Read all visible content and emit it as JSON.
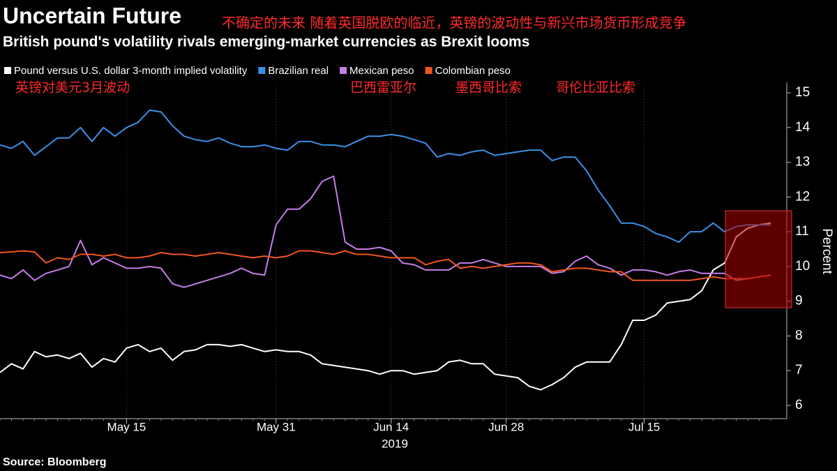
{
  "chart_data": {
    "type": "line",
    "title": "Uncertain Future",
    "subtitle": "British pound's volatility rivals emerging-market currencies as Brexit looms",
    "annotations": [
      "不确定的未来 随着英国脱欧的临近，英镑的波动性与新兴市场货币形成竞争",
      "英镑对美元3月波动",
      "巴西雷亚尔",
      "墨西哥比索",
      "哥伦比亚比索"
    ],
    "y_label": "Percent",
    "x_label": "2019",
    "source": "Source: Bloomberg",
    "categories": [
      null,
      null,
      null,
      null,
      null,
      null,
      null,
      null,
      null,
      null,
      null,
      "May 15",
      null,
      null,
      null,
      null,
      null,
      null,
      null,
      null,
      null,
      null,
      null,
      null,
      "May 31",
      null,
      null,
      null,
      null,
      null,
      null,
      null,
      null,
      null,
      "Jun 14",
      null,
      null,
      null,
      null,
      null,
      null,
      null,
      null,
      null,
      "Jun 28",
      null,
      null,
      null,
      null,
      null,
      null,
      null,
      null,
      null,
      null,
      null,
      "Jul 15",
      null,
      null,
      null,
      null,
      null,
      null,
      null,
      null,
      null,
      null,
      null
    ],
    "series": [
      {
        "name": "Pound versus U.S. dollar 3-month implied volatility",
        "color": "#ffffff",
        "values": [
          6.95,
          7.2,
          7.05,
          7.55,
          7.4,
          7.45,
          7.35,
          7.5,
          7.1,
          7.35,
          7.25,
          7.65,
          7.75,
          7.55,
          7.65,
          7.3,
          7.55,
          7.6,
          7.75,
          7.75,
          7.7,
          7.75,
          7.65,
          7.55,
          7.6,
          7.55,
          7.55,
          7.45,
          7.2,
          7.15,
          7.1,
          7.05,
          7.0,
          6.9,
          7.0,
          7.0,
          6.9,
          6.95,
          7.0,
          7.25,
          7.3,
          7.2,
          7.2,
          6.9,
          6.85,
          6.8,
          6.55,
          6.45,
          6.6,
          6.8,
          7.1,
          7.25,
          7.25,
          7.25,
          7.75,
          8.45,
          8.45,
          8.6,
          8.95,
          9.0,
          9.05,
          9.3,
          9.9,
          10.1,
          10.85,
          11.1,
          11.2,
          11.25
        ]
      },
      {
        "name": "Brazilian real",
        "color": "#3d8fe6",
        "values": [
          13.5,
          13.4,
          13.6,
          13.2,
          13.45,
          13.7,
          13.7,
          14.0,
          13.6,
          14.0,
          13.75,
          14.0,
          14.15,
          14.5,
          14.45,
          14.05,
          13.75,
          13.65,
          13.6,
          13.7,
          13.55,
          13.45,
          13.45,
          13.5,
          13.4,
          13.35,
          13.6,
          13.6,
          13.5,
          13.5,
          13.45,
          13.6,
          13.75,
          13.75,
          13.8,
          13.75,
          13.65,
          13.55,
          13.15,
          13.25,
          13.2,
          13.3,
          13.35,
          13.2,
          13.25,
          13.3,
          13.35,
          13.35,
          13.05,
          13.15,
          13.15,
          12.75,
          12.2,
          11.75,
          11.25,
          11.25,
          11.15,
          10.95,
          10.85,
          10.7,
          11.0,
          11.0,
          11.25,
          11.0,
          11.15,
          11.2,
          11.2,
          11.2
        ]
      },
      {
        "name": "Mexican peso",
        "color": "#c77dea",
        "values": [
          9.75,
          9.65,
          9.9,
          9.6,
          9.8,
          9.9,
          10.0,
          10.75,
          10.05,
          10.25,
          10.1,
          9.95,
          9.95,
          10.0,
          9.95,
          9.5,
          9.4,
          9.5,
          9.6,
          9.7,
          9.8,
          9.95,
          9.8,
          9.75,
          11.2,
          11.65,
          11.65,
          11.95,
          12.45,
          12.6,
          10.7,
          10.5,
          10.5,
          10.55,
          10.45,
          10.1,
          10.05,
          9.9,
          9.9,
          9.9,
          10.1,
          10.1,
          10.2,
          10.1,
          10.0,
          10.0,
          10.0,
          10.0,
          9.8,
          9.85,
          10.15,
          10.3,
          10.05,
          9.95,
          9.75,
          9.9,
          9.9,
          9.85,
          9.75,
          9.85,
          9.9,
          9.8,
          9.8,
          9.8,
          9.6,
          9.65,
          9.7,
          9.75
        ]
      },
      {
        "name": "Colombian peso",
        "color": "#f0561d",
        "values": [
          10.4,
          10.42,
          10.45,
          10.42,
          10.1,
          10.25,
          10.2,
          10.35,
          10.35,
          10.3,
          10.35,
          10.25,
          10.25,
          10.3,
          10.4,
          10.35,
          10.35,
          10.3,
          10.35,
          10.4,
          10.35,
          10.3,
          10.25,
          10.3,
          10.25,
          10.3,
          10.45,
          10.45,
          10.4,
          10.35,
          10.45,
          10.35,
          10.35,
          10.3,
          10.25,
          10.25,
          10.25,
          10.05,
          10.15,
          10.2,
          9.95,
          10.0,
          9.95,
          10.0,
          10.05,
          10.1,
          10.1,
          10.05,
          9.85,
          9.9,
          9.95,
          9.95,
          9.9,
          9.85,
          9.85,
          9.6,
          9.6,
          9.6,
          9.6,
          9.6,
          9.6,
          9.65,
          9.7,
          9.65,
          9.65,
          9.65,
          9.7,
          9.75
        ]
      }
    ],
    "ylim": [
      6,
      15
    ],
    "yticks": [
      6,
      7,
      8,
      9,
      10,
      11,
      12,
      13,
      14,
      15
    ],
    "y_axis_side": "right",
    "grid": true
  }
}
